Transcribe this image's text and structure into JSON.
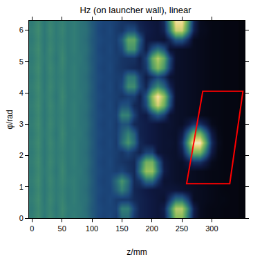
{
  "chart_data": {
    "type": "heatmap",
    "title": "Hz (on launcher wall), linear",
    "x_label": "z/mm",
    "y_label": "φ/rad",
    "xlim": [
      -5,
      355
    ],
    "ylim": [
      0,
      6.3
    ],
    "xticks": [
      0,
      50,
      100,
      150,
      200,
      250,
      300
    ],
    "yticks": [
      0,
      1,
      2,
      3,
      4,
      5,
      6
    ],
    "zlim": [
      0,
      1
    ],
    "x": [
      0,
      10,
      20,
      30,
      40,
      50,
      60,
      70,
      80,
      90,
      100,
      110,
      120,
      130,
      140,
      150,
      160,
      170,
      180,
      190,
      200,
      210,
      220,
      230,
      240,
      250,
      260,
      270,
      280,
      290,
      300,
      310,
      320,
      330,
      340
    ],
    "y": [
      0,
      0.3,
      0.6,
      0.9,
      1.2,
      1.5,
      1.8,
      2.1,
      2.4,
      2.7,
      3.0,
      3.3,
      3.6,
      3.9,
      4.2,
      4.5,
      4.8,
      5.1,
      5.4,
      5.7,
      6.0,
      6.3
    ],
    "z": [
      [
        0.46,
        0.5,
        0.44,
        0.49,
        0.45,
        0.48,
        0.44,
        0.46,
        0.43,
        0.42,
        0.36,
        0.3,
        0.28,
        0.3,
        0.26,
        0.4,
        0.4,
        0.24,
        0.18,
        0.16,
        0.14,
        0.12,
        0.15,
        0.41,
        0.68,
        0.68,
        0.41,
        0.15,
        0.05,
        0.03,
        0.02,
        0.02,
        0.01,
        0.01,
        0.01
      ],
      [
        0.45,
        0.49,
        0.45,
        0.48,
        0.44,
        0.49,
        0.45,
        0.45,
        0.44,
        0.41,
        0.35,
        0.31,
        0.29,
        0.29,
        0.28,
        0.46,
        0.46,
        0.28,
        0.18,
        0.16,
        0.14,
        0.12,
        0.17,
        0.47,
        0.77,
        0.77,
        0.47,
        0.17,
        0.05,
        0.03,
        0.02,
        0.02,
        0.01,
        0.01,
        0.01
      ],
      [
        0.46,
        0.5,
        0.44,
        0.49,
        0.45,
        0.48,
        0.44,
        0.46,
        0.43,
        0.42,
        0.36,
        0.3,
        0.28,
        0.3,
        0.26,
        0.25,
        0.25,
        0.2,
        0.18,
        0.16,
        0.14,
        0.12,
        0.1,
        0.26,
        0.42,
        0.42,
        0.26,
        0.06,
        0.05,
        0.04,
        0.03,
        0.02,
        0.02,
        0.01,
        0.01
      ],
      [
        0.45,
        0.49,
        0.44,
        0.48,
        0.45,
        0.47,
        0.44,
        0.46,
        0.43,
        0.41,
        0.35,
        0.31,
        0.29,
        0.29,
        0.37,
        0.47,
        0.37,
        0.19,
        0.17,
        0.15,
        0.13,
        0.12,
        0.12,
        0.12,
        0.12,
        0.1,
        0.08,
        0.06,
        0.05,
        0.04,
        0.03,
        0.02,
        0.01,
        0.01,
        0.01
      ],
      [
        0.46,
        0.5,
        0.44,
        0.49,
        0.45,
        0.48,
        0.45,
        0.46,
        0.43,
        0.42,
        0.36,
        0.3,
        0.28,
        0.3,
        0.41,
        0.53,
        0.41,
        0.2,
        0.24,
        0.4,
        0.4,
        0.24,
        0.1,
        0.1,
        0.08,
        0.07,
        0.06,
        0.05,
        0.04,
        0.03,
        0.02,
        0.02,
        0.01,
        0.01,
        0.01
      ],
      [
        0.45,
        0.49,
        0.45,
        0.48,
        0.44,
        0.49,
        0.44,
        0.45,
        0.44,
        0.41,
        0.35,
        0.31,
        0.29,
        0.29,
        0.27,
        0.29,
        0.24,
        0.2,
        0.44,
        0.72,
        0.72,
        0.44,
        0.16,
        0.1,
        0.08,
        0.07,
        0.06,
        0.05,
        0.04,
        0.03,
        0.02,
        0.02,
        0.01,
        0.01,
        0.01
      ],
      [
        0.46,
        0.5,
        0.44,
        0.49,
        0.45,
        0.48,
        0.44,
        0.46,
        0.43,
        0.42,
        0.36,
        0.3,
        0.28,
        0.3,
        0.26,
        0.24,
        0.22,
        0.2,
        0.39,
        0.64,
        0.64,
        0.39,
        0.14,
        0.1,
        0.08,
        0.07,
        0.14,
        0.23,
        0.23,
        0.14,
        0.04,
        0.02,
        0.01,
        0.01,
        0.01
      ],
      [
        0.45,
        0.49,
        0.44,
        0.48,
        0.45,
        0.47,
        0.44,
        0.46,
        0.43,
        0.41,
        0.35,
        0.31,
        0.29,
        0.29,
        0.27,
        0.24,
        0.29,
        0.23,
        0.18,
        0.28,
        0.28,
        0.12,
        0.1,
        0.09,
        0.08,
        0.15,
        0.4,
        0.66,
        0.66,
        0.4,
        0.15,
        0.03,
        0.01,
        0.01,
        0.01
      ],
      [
        0.46,
        0.5,
        0.44,
        0.49,
        0.45,
        0.48,
        0.44,
        0.46,
        0.43,
        0.42,
        0.36,
        0.3,
        0.28,
        0.3,
        0.26,
        0.41,
        0.53,
        0.41,
        0.2,
        0.16,
        0.14,
        0.12,
        0.1,
        0.1,
        0.08,
        0.21,
        0.57,
        0.94,
        0.94,
        0.57,
        0.21,
        0.05,
        0.01,
        0.01,
        0.01
      ],
      [
        0.45,
        0.49,
        0.45,
        0.48,
        0.44,
        0.49,
        0.44,
        0.45,
        0.44,
        0.41,
        0.35,
        0.31,
        0.29,
        0.29,
        0.27,
        0.37,
        0.47,
        0.37,
        0.18,
        0.16,
        0.14,
        0.12,
        0.1,
        0.09,
        0.08,
        0.15,
        0.4,
        0.66,
        0.66,
        0.4,
        0.15,
        0.03,
        0.01,
        0.01,
        0.01
      ],
      [
        0.46,
        0.5,
        0.44,
        0.49,
        0.45,
        0.48,
        0.44,
        0.46,
        0.43,
        0.42,
        0.36,
        0.3,
        0.28,
        0.3,
        0.26,
        0.33,
        0.33,
        0.2,
        0.18,
        0.16,
        0.14,
        0.12,
        0.1,
        0.1,
        0.08,
        0.07,
        0.14,
        0.23,
        0.23,
        0.14,
        0.04,
        0.02,
        0.01,
        0.01,
        0.01
      ],
      [
        0.45,
        0.49,
        0.44,
        0.48,
        0.45,
        0.47,
        0.44,
        0.46,
        0.43,
        0.41,
        0.35,
        0.31,
        0.29,
        0.29,
        0.28,
        0.47,
        0.47,
        0.28,
        0.17,
        0.15,
        0.27,
        0.35,
        0.27,
        0.1,
        0.08,
        0.07,
        0.06,
        0.05,
        0.04,
        0.03,
        0.02,
        0.02,
        0.01,
        0.01,
        0.01
      ],
      [
        0.46,
        0.5,
        0.44,
        0.49,
        0.45,
        0.48,
        0.44,
        0.46,
        0.43,
        0.42,
        0.36,
        0.3,
        0.28,
        0.3,
        0.26,
        0.33,
        0.33,
        0.2,
        0.18,
        0.3,
        0.63,
        0.81,
        0.63,
        0.3,
        0.08,
        0.07,
        0.06,
        0.05,
        0.04,
        0.03,
        0.02,
        0.02,
        0.01,
        0.01,
        0.01
      ],
      [
        0.45,
        0.49,
        0.45,
        0.48,
        0.44,
        0.49,
        0.44,
        0.45,
        0.44,
        0.41,
        0.35,
        0.31,
        0.29,
        0.29,
        0.27,
        0.24,
        0.27,
        0.27,
        0.17,
        0.34,
        0.71,
        0.91,
        0.71,
        0.34,
        0.09,
        0.07,
        0.06,
        0.05,
        0.04,
        0.03,
        0.02,
        0.02,
        0.01,
        0.01,
        0.01
      ],
      [
        0.46,
        0.5,
        0.44,
        0.49,
        0.45,
        0.48,
        0.44,
        0.46,
        0.43,
        0.42,
        0.36,
        0.3,
        0.28,
        0.3,
        0.26,
        0.3,
        0.5,
        0.5,
        0.3,
        0.19,
        0.39,
        0.5,
        0.39,
        0.19,
        0.08,
        0.07,
        0.06,
        0.05,
        0.04,
        0.03,
        0.02,
        0.02,
        0.01,
        0.01,
        0.01
      ],
      [
        0.45,
        0.49,
        0.44,
        0.48,
        0.45,
        0.47,
        0.44,
        0.46,
        0.43,
        0.41,
        0.35,
        0.31,
        0.29,
        0.29,
        0.27,
        0.27,
        0.44,
        0.44,
        0.27,
        0.16,
        0.23,
        0.3,
        0.23,
        0.1,
        0.08,
        0.07,
        0.06,
        0.05,
        0.04,
        0.03,
        0.02,
        0.02,
        0.01,
        0.01,
        0.01
      ],
      [
        0.46,
        0.5,
        0.44,
        0.49,
        0.45,
        0.48,
        0.44,
        0.46,
        0.43,
        0.42,
        0.36,
        0.3,
        0.28,
        0.3,
        0.26,
        0.24,
        0.22,
        0.2,
        0.18,
        0.25,
        0.53,
        0.68,
        0.53,
        0.25,
        0.08,
        0.07,
        0.06,
        0.05,
        0.04,
        0.03,
        0.02,
        0.02,
        0.01,
        0.01,
        0.01
      ],
      [
        0.45,
        0.49,
        0.45,
        0.48,
        0.44,
        0.49,
        0.44,
        0.45,
        0.44,
        0.41,
        0.35,
        0.31,
        0.29,
        0.29,
        0.27,
        0.24,
        0.23,
        0.23,
        0.17,
        0.28,
        0.6,
        0.77,
        0.6,
        0.28,
        0.09,
        0.07,
        0.06,
        0.05,
        0.04,
        0.03,
        0.02,
        0.02,
        0.01,
        0.01,
        0.01
      ],
      [
        0.46,
        0.5,
        0.44,
        0.49,
        0.45,
        0.48,
        0.44,
        0.46,
        0.43,
        0.42,
        0.36,
        0.3,
        0.28,
        0.3,
        0.26,
        0.3,
        0.52,
        0.52,
        0.3,
        0.16,
        0.33,
        0.42,
        0.33,
        0.1,
        0.08,
        0.07,
        0.06,
        0.05,
        0.04,
        0.03,
        0.02,
        0.02,
        0.01,
        0.01,
        0.01
      ],
      [
        0.45,
        0.49,
        0.44,
        0.48,
        0.45,
        0.47,
        0.44,
        0.46,
        0.43,
        0.41,
        0.35,
        0.31,
        0.29,
        0.29,
        0.27,
        0.36,
        0.59,
        0.59,
        0.36,
        0.15,
        0.13,
        0.12,
        0.1,
        0.21,
        0.35,
        0.35,
        0.21,
        0.05,
        0.04,
        0.03,
        0.02,
        0.02,
        0.01,
        0.01,
        0.01
      ],
      [
        0.46,
        0.5,
        0.44,
        0.49,
        0.45,
        0.48,
        0.44,
        0.46,
        0.43,
        0.42,
        0.36,
        0.3,
        0.28,
        0.3,
        0.26,
        0.24,
        0.32,
        0.32,
        0.2,
        0.16,
        0.14,
        0.12,
        0.18,
        0.48,
        0.8,
        0.8,
        0.48,
        0.18,
        0.05,
        0.04,
        0.02,
        0.02,
        0.01,
        0.01,
        0.01
      ],
      [
        0.45,
        0.49,
        0.44,
        0.48,
        0.45,
        0.47,
        0.44,
        0.46,
        0.43,
        0.41,
        0.35,
        0.31,
        0.29,
        0.29,
        0.27,
        0.24,
        0.22,
        0.2,
        0.17,
        0.15,
        0.13,
        0.12,
        0.2,
        0.55,
        0.9,
        0.9,
        0.55,
        0.2,
        0.05,
        0.03,
        0.02,
        0.02,
        0.01,
        0.01,
        0.01
      ]
    ],
    "region": {
      "x": [
        258,
        330,
        352,
        285,
        258
      ],
      "y": [
        1.1,
        1.1,
        4.05,
        4.05,
        1.1
      ],
      "color": "red"
    }
  }
}
